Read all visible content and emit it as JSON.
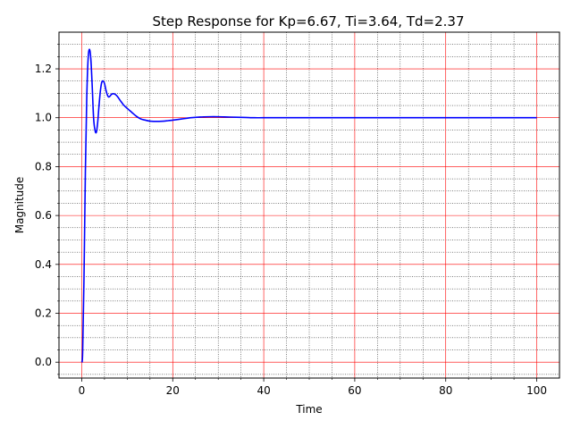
{
  "chart_data": {
    "type": "line",
    "title": "Step Response for Kp=6.67, Ti=3.64, Td=2.37",
    "xlabel": "Time",
    "ylabel": "Magnitude",
    "xlim": [
      -5,
      105
    ],
    "ylim": [
      -0.065,
      1.35
    ],
    "xticks": [
      0,
      20,
      40,
      60,
      80,
      100
    ],
    "yticks": [
      0.0,
      0.2,
      0.4,
      0.6,
      0.8,
      1.0,
      1.2
    ],
    "xtick_labels": [
      "0",
      "20",
      "40",
      "60",
      "80",
      "100"
    ],
    "ytick_labels": [
      "0.0",
      "0.2",
      "0.4",
      "0.6",
      "0.8",
      "1.0",
      "1.2"
    ],
    "grid": {
      "major": true,
      "major_color": "#ff0000",
      "minor": true,
      "minor_color": "#000000"
    },
    "series": [
      {
        "color": "#0000ff",
        "x": [
          0,
          0.2,
          0.5,
          0.8,
          1.1,
          1.4,
          1.7,
          2.0,
          2.3,
          2.6,
          2.9,
          3.2,
          3.5,
          3.8,
          4.1,
          4.4,
          4.7,
          5.0,
          5.3,
          5.6,
          5.9,
          6.2,
          6.5,
          6.8,
          7.2,
          7.6,
          8.0,
          8.4,
          8.8,
          9.2,
          9.6,
          10,
          11,
          12,
          13,
          14,
          15,
          16,
          17,
          18,
          19,
          20,
          22,
          24,
          26,
          28,
          30,
          32,
          34,
          36,
          38,
          40,
          45,
          50,
          55,
          60,
          65,
          70,
          75,
          80,
          85,
          90,
          95,
          100
        ],
        "y": [
          0,
          0.04,
          0.35,
          0.78,
          1.08,
          1.24,
          1.28,
          1.24,
          1.13,
          1.0,
          0.95,
          0.94,
          0.98,
          1.05,
          1.11,
          1.145,
          1.15,
          1.14,
          1.115,
          1.095,
          1.085,
          1.088,
          1.095,
          1.098,
          1.097,
          1.092,
          1.083,
          1.072,
          1.062,
          1.052,
          1.045,
          1.038,
          1.022,
          1.006,
          0.995,
          0.99,
          0.986,
          0.985,
          0.985,
          0.986,
          0.988,
          0.99,
          0.995,
          1.0,
          1.003,
          1.004,
          1.004,
          1.003,
          1.002,
          1.001,
          1.0,
          1.0,
          1.0,
          1.0,
          1.0,
          1.0,
          1.0,
          1.0,
          1.0,
          1.0,
          1.0,
          1.0,
          1.0,
          1.0
        ]
      }
    ]
  }
}
